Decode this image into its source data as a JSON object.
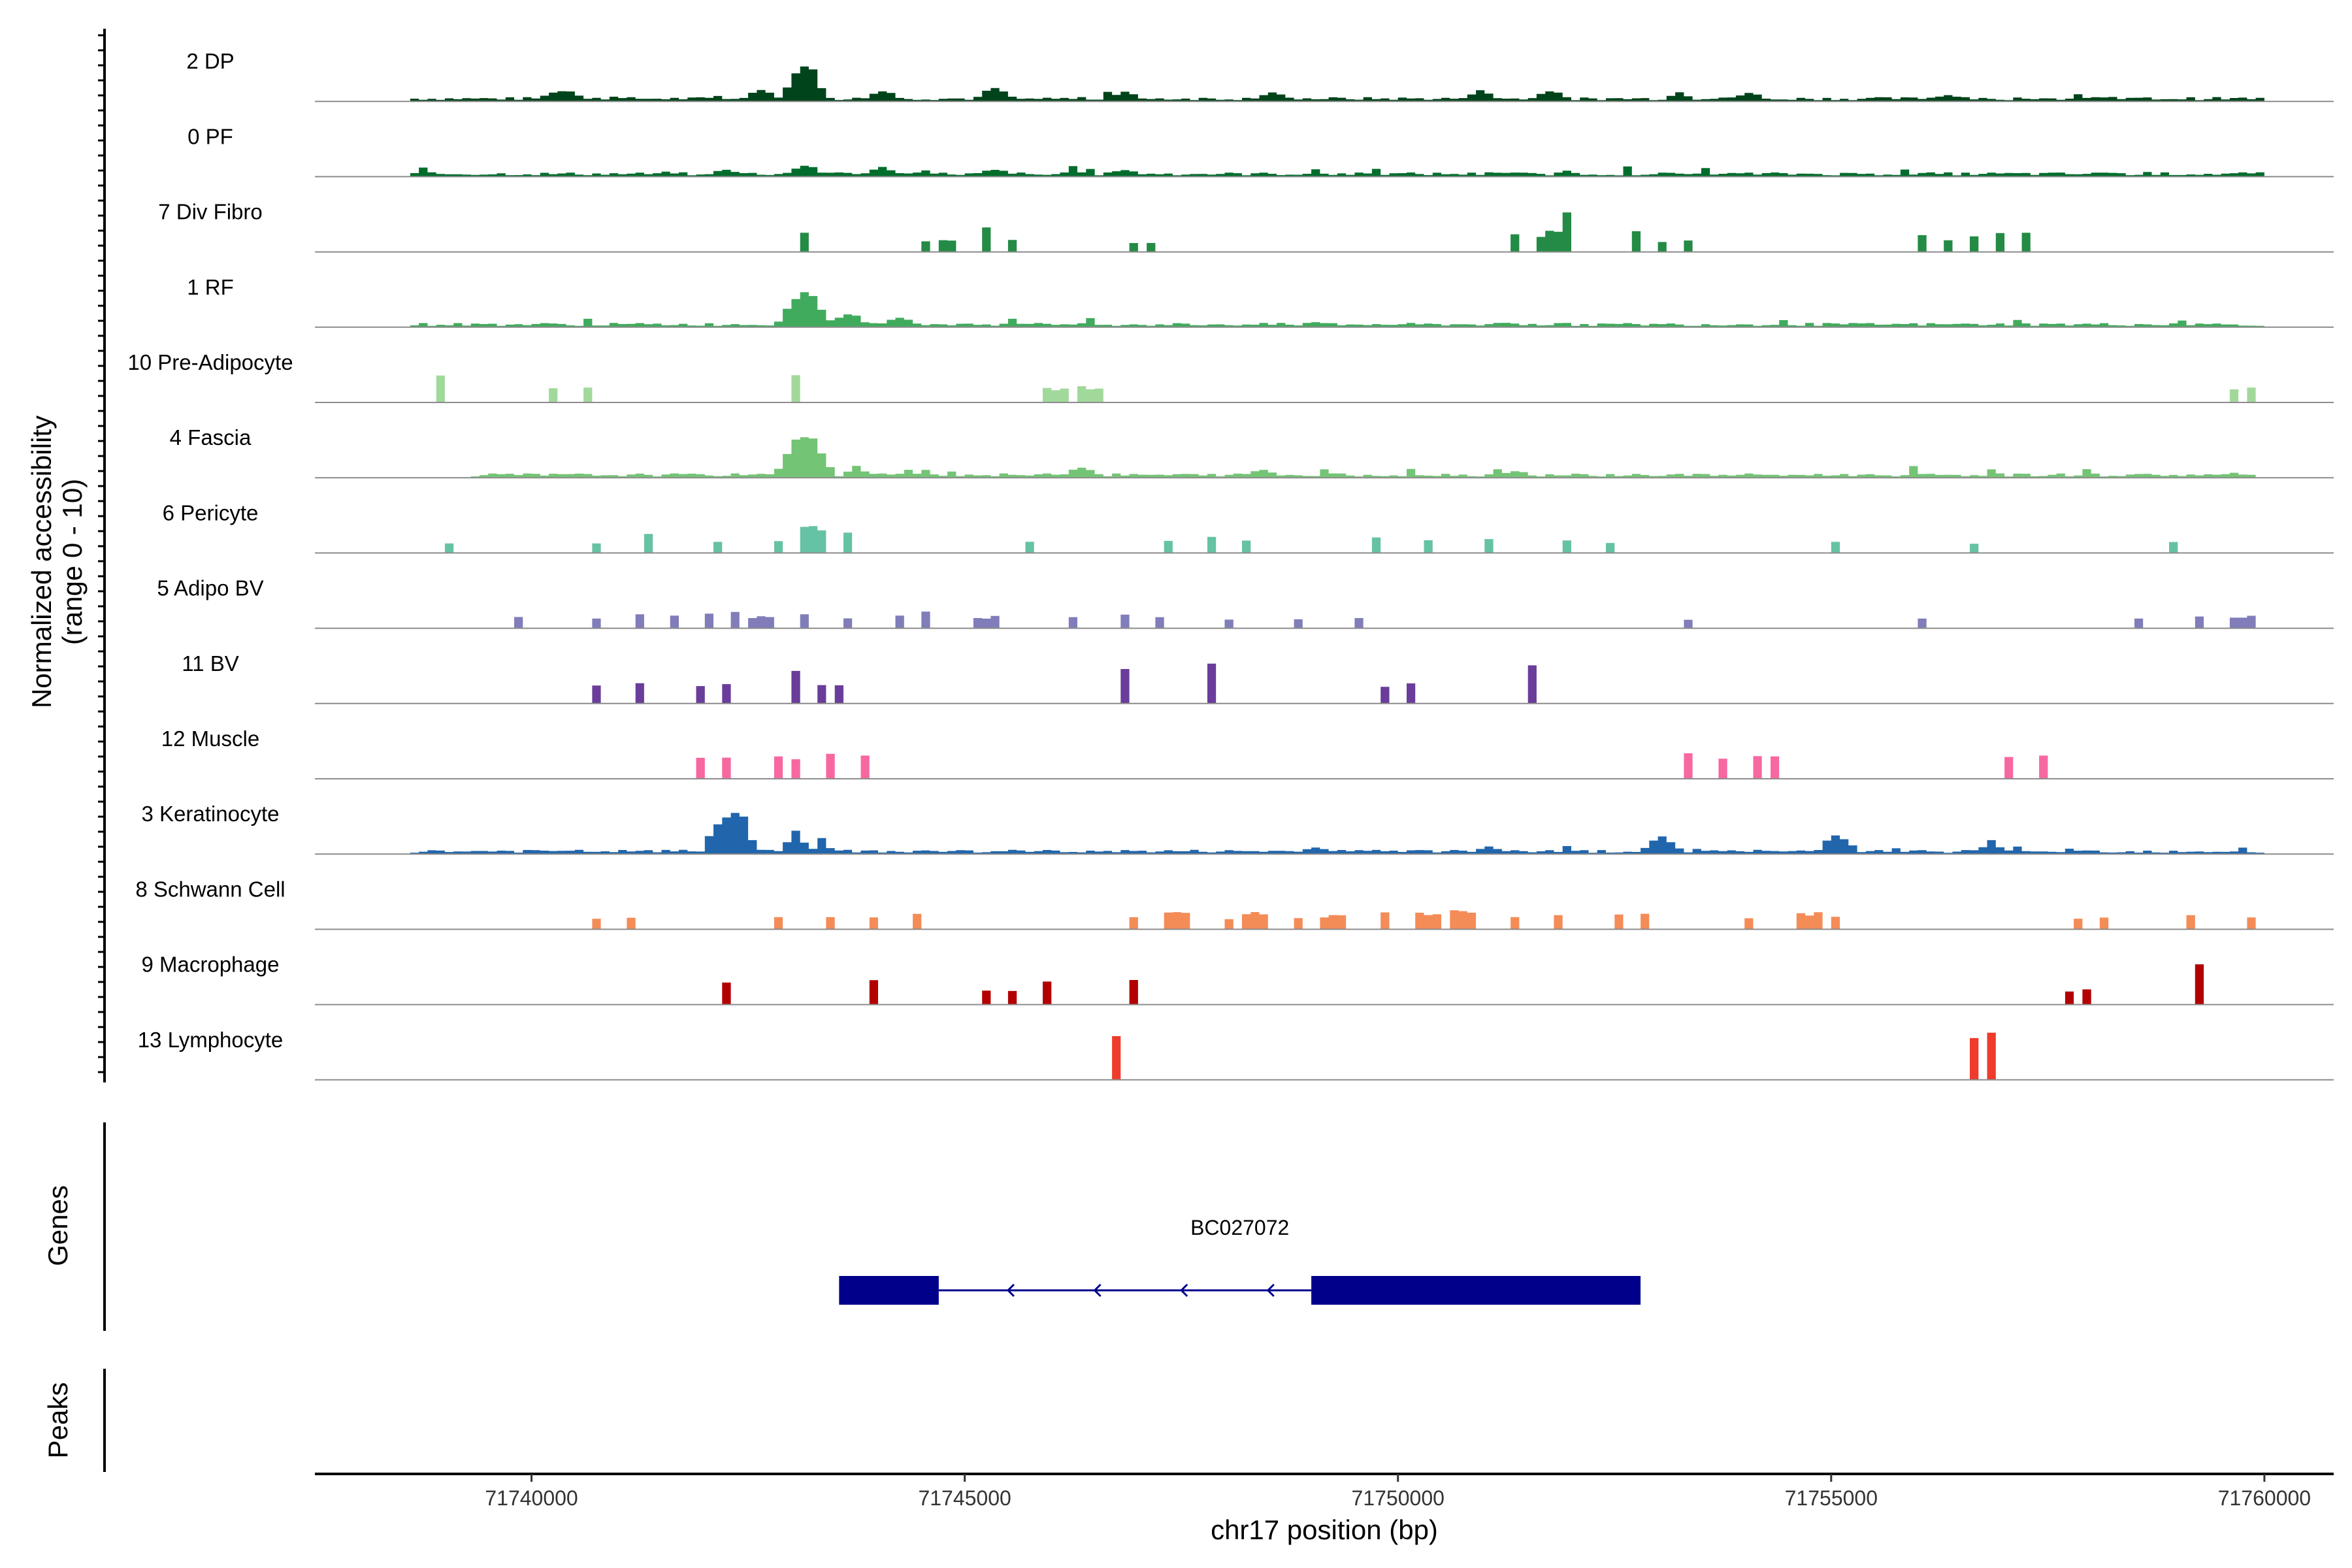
{
  "chart_data": {
    "type": "area",
    "title": "",
    "chromosome": "chr17",
    "xlabel": "chr17 position (bp)",
    "ylabel": "Normalized accessibility",
    "ylabel_range": "(range 0 - 10)",
    "ylim": [
      0,
      10
    ],
    "xlim": [
      71737500,
      71760800
    ],
    "x_ticks": [
      71740000,
      71745000,
      71750000,
      71755000,
      71760000
    ],
    "x_tick_labels": [
      "71740000",
      "71745000",
      "71750000",
      "71755000",
      "71760000"
    ],
    "bin_size_bp": 100,
    "tracks": [
      {
        "name": "2 DP",
        "color": "#00441b",
        "style": "broad",
        "start": 71738600,
        "end": 71759900,
        "peaks": [
          [
            71740300,
            2.3,
            400
          ],
          [
            71743100,
            8.5,
            300
          ],
          [
            71742600,
            2.5,
            300
          ],
          [
            71744000,
            2.2,
            300
          ],
          [
            71745300,
            2.8,
            300
          ],
          [
            71746800,
            2.0,
            300
          ],
          [
            71748500,
            1.8,
            300
          ],
          [
            71750900,
            2.2,
            300
          ],
          [
            71751700,
            2.4,
            300
          ],
          [
            71753200,
            2.2,
            200
          ],
          [
            71754000,
            1.8,
            300
          ],
          [
            71756300,
            1.5,
            300
          ]
        ]
      },
      {
        "name": "0 PF",
        "color": "#006d2c",
        "style": "broad",
        "start": 71738600,
        "end": 71759900,
        "peaks": [
          [
            71743100,
            2.5,
            300
          ],
          [
            71744000,
            2.0,
            300
          ],
          [
            71745300,
            1.6,
            300
          ],
          [
            71742200,
            1.5,
            300
          ],
          [
            71746800,
            1.5,
            300
          ]
        ]
      },
      {
        "name": "7 Div Fibro",
        "color": "#238b45",
        "style": "sparse",
        "peaks": [
          [
            71743100,
            3.8,
            120
          ],
          [
            71744500,
            2.5,
            100
          ],
          [
            71744750,
            2.5,
            100
          ],
          [
            71745200,
            5.2,
            140
          ],
          [
            71745500,
            2.5,
            100
          ],
          [
            71746900,
            2.0,
            100
          ],
          [
            71747100,
            2.0,
            100
          ],
          [
            71751300,
            4.5,
            150
          ],
          [
            71751600,
            3.8,
            150
          ],
          [
            71751750,
            5.2,
            150
          ],
          [
            71751900,
            8.0,
            180
          ],
          [
            71752700,
            5.2,
            120
          ],
          [
            71753000,
            2.5,
            100
          ],
          [
            71753300,
            2.8,
            100
          ],
          [
            71756000,
            3.5,
            150
          ],
          [
            71756300,
            2.5,
            120
          ],
          [
            71756600,
            3.5,
            120
          ],
          [
            71756900,
            4.2,
            150
          ],
          [
            71757200,
            4.8,
            160
          ]
        ]
      },
      {
        "name": "1 RF",
        "color": "#41ab5d",
        "style": "broad",
        "start": 71738600,
        "end": 71759900,
        "peaks": [
          [
            71743100,
            8.0,
            350
          ],
          [
            71743600,
            3.0,
            300
          ],
          [
            71744200,
            2.3,
            300
          ],
          [
            71749000,
            1.2,
            300
          ],
          [
            71751200,
            1.0,
            300
          ]
        ]
      },
      {
        "name": "10 Pre-Adipocyte",
        "color": "#a1d99b",
        "style": "sparse",
        "peaks": [
          [
            71738900,
            6.0,
            120
          ],
          [
            71740200,
            3.0,
            100
          ],
          [
            71740600,
            3.0,
            100
          ],
          [
            71743000,
            6.0,
            150
          ],
          [
            71746000,
            3.2,
            250
          ],
          [
            71746400,
            3.2,
            250
          ],
          [
            71759600,
            3.0,
            100
          ],
          [
            71759800,
            3.0,
            100
          ]
        ]
      },
      {
        "name": "4 Fascia",
        "color": "#74c476",
        "style": "broad",
        "start": 71739300,
        "end": 71759800,
        "peaks": [
          [
            71743100,
            9.5,
            380
          ],
          [
            71743700,
            2.5,
            200
          ],
          [
            71744300,
            1.6,
            200
          ],
          [
            71746300,
            2.2,
            300
          ],
          [
            71748400,
            1.5,
            300
          ],
          [
            71751300,
            1.5,
            300
          ]
        ]
      },
      {
        "name": "6 Pericyte",
        "color": "#66c2a4",
        "style": "sparse",
        "peaks": [
          [
            71739000,
            2.5,
            120
          ],
          [
            71740700,
            2.5,
            100
          ],
          [
            71741300,
            4.0,
            150
          ],
          [
            71742100,
            2.5,
            120
          ],
          [
            71742800,
            3.0,
            150
          ],
          [
            71743200,
            5.5,
            220
          ],
          [
            71743600,
            4.5,
            150
          ],
          [
            71745700,
            2.5,
            100
          ],
          [
            71747300,
            2.5,
            100
          ],
          [
            71747800,
            3.5,
            150
          ],
          [
            71748200,
            2.5,
            150
          ],
          [
            71749700,
            3.8,
            150
          ],
          [
            71750300,
            3.0,
            100
          ],
          [
            71751000,
            3.2,
            120
          ],
          [
            71751900,
            2.5,
            100
          ],
          [
            71752400,
            2.5,
            100
          ],
          [
            71755000,
            2.5,
            150
          ],
          [
            71756600,
            2.2,
            100
          ],
          [
            71758900,
            2.5,
            150
          ]
        ]
      },
      {
        "name": "5 Adipo BV",
        "color": "#807dba",
        "style": "sparse",
        "peaks": [
          [
            71739800,
            2.5,
            100
          ],
          [
            71740700,
            2.0,
            100
          ],
          [
            71741200,
            3.0,
            100
          ],
          [
            71741600,
            2.5,
            100
          ],
          [
            71742000,
            3.0,
            100
          ],
          [
            71742300,
            4.0,
            150
          ],
          [
            71742600,
            2.5,
            200
          ],
          [
            71743100,
            3.0,
            150
          ],
          [
            71743600,
            2.5,
            100
          ],
          [
            71744200,
            2.5,
            100
          ],
          [
            71744500,
            3.5,
            150
          ],
          [
            71745200,
            2.5,
            200
          ],
          [
            71746200,
            2.5,
            100
          ],
          [
            71746800,
            3.5,
            150
          ],
          [
            71747200,
            2.5,
            100
          ],
          [
            71748000,
            2.0,
            100
          ],
          [
            71748800,
            2.0,
            100
          ],
          [
            71749500,
            2.0,
            100
          ],
          [
            71753300,
            2.0,
            100
          ],
          [
            71756000,
            2.0,
            100
          ],
          [
            71758500,
            2.0,
            100
          ],
          [
            71759200,
            2.5,
            150
          ],
          [
            71759700,
            2.5,
            200
          ]
        ]
      },
      {
        "name": "11 BV",
        "color": "#6a3d9a",
        "style": "sparse",
        "peaks": [
          [
            71740700,
            4.0,
            100
          ],
          [
            71741200,
            4.0,
            100
          ],
          [
            71741900,
            4.0,
            100
          ],
          [
            71742200,
            4.0,
            100
          ],
          [
            71743000,
            8.0,
            150
          ],
          [
            71743300,
            4.0,
            100
          ],
          [
            71743500,
            4.0,
            100
          ],
          [
            71746800,
            8.0,
            120
          ],
          [
            71747800,
            8.0,
            150
          ],
          [
            71749800,
            4.0,
            100
          ],
          [
            71750100,
            4.0,
            100
          ],
          [
            71751500,
            8.0,
            150
          ]
        ]
      },
      {
        "name": "12 Muscle",
        "color": "#f768a1",
        "style": "sparse",
        "peaks": [
          [
            71741900,
            5.0,
            100
          ],
          [
            71742200,
            5.0,
            100
          ],
          [
            71742800,
            5.0,
            100
          ],
          [
            71743000,
            5.0,
            100
          ],
          [
            71743400,
            5.0,
            100
          ],
          [
            71743800,
            5.0,
            100
          ],
          [
            71753300,
            5.0,
            100
          ],
          [
            71753700,
            5.0,
            100
          ],
          [
            71754100,
            5.0,
            100
          ],
          [
            71754300,
            5.0,
            100
          ],
          [
            71757000,
            5.0,
            100
          ],
          [
            71757400,
            5.0,
            100
          ]
        ]
      },
      {
        "name": "3 Keratinocyte",
        "color": "#2166ac",
        "style": "broad",
        "start": 71738600,
        "end": 71759900,
        "peaks": [
          [
            71742300,
            10.0,
            300
          ],
          [
            71742100,
            6.5,
            200
          ],
          [
            71743000,
            5.0,
            200
          ],
          [
            71743300,
            3.5,
            150
          ],
          [
            71753000,
            3.5,
            300
          ],
          [
            71755000,
            4.5,
            250
          ],
          [
            71756800,
            2.8,
            200
          ],
          [
            71749000,
            1.5,
            300
          ],
          [
            71751000,
            1.5,
            300
          ]
        ]
      },
      {
        "name": "8 Schwann Cell",
        "color": "#f48c58",
        "style": "sparse",
        "peaks": [
          [
            71740700,
            2.5,
            100
          ],
          [
            71741100,
            2.5,
            100
          ],
          [
            71742800,
            2.5,
            150
          ],
          [
            71743400,
            2.5,
            100
          ],
          [
            71743900,
            2.5,
            100
          ],
          [
            71744400,
            3.5,
            150
          ],
          [
            71746900,
            3.0,
            150
          ],
          [
            71747400,
            3.5,
            200
          ],
          [
            71748000,
            2.5,
            150
          ],
          [
            71748300,
            3.5,
            200
          ],
          [
            71748800,
            2.5,
            150
          ],
          [
            71749200,
            3.0,
            200
          ],
          [
            71749800,
            3.5,
            150
          ],
          [
            71750300,
            3.5,
            200
          ],
          [
            71750700,
            4.0,
            250
          ],
          [
            71751300,
            3.0,
            150
          ],
          [
            71751800,
            3.5,
            150
          ],
          [
            71752500,
            3.0,
            150
          ],
          [
            71752800,
            3.5,
            150
          ],
          [
            71754000,
            2.5,
            100
          ],
          [
            71754700,
            3.5,
            200
          ],
          [
            71755000,
            2.5,
            100
          ],
          [
            71757800,
            2.5,
            100
          ],
          [
            71758100,
            2.5,
            100
          ],
          [
            71759100,
            3.5,
            150
          ],
          [
            71759800,
            2.5,
            100
          ]
        ]
      },
      {
        "name": "9 Macrophage",
        "color": "#b30000",
        "style": "sparse",
        "peaks": [
          [
            71742200,
            5.0,
            150
          ],
          [
            71743900,
            5.0,
            150
          ],
          [
            71745200,
            3.0,
            100
          ],
          [
            71745500,
            3.0,
            100
          ],
          [
            71745900,
            5.5,
            150
          ],
          [
            71746900,
            5.5,
            150
          ],
          [
            71757700,
            3.0,
            100
          ],
          [
            71757900,
            3.0,
            100
          ],
          [
            71759200,
            8.5,
            150
          ]
        ]
      },
      {
        "name": "13 Lymphocyte",
        "color": "#ef3b2c",
        "style": "sparse",
        "peaks": [
          [
            71746700,
            10.0,
            150
          ],
          [
            71756600,
            10.0,
            120
          ],
          [
            71756800,
            10.0,
            120
          ]
        ]
      }
    ],
    "gene": {
      "name": "BC027072",
      "strand": "-",
      "color": "#00008b",
      "exons": [
        [
          71743550,
          71744700
        ],
        [
          71749000,
          71752800
        ]
      ],
      "intron": [
        71744700,
        71749000
      ],
      "arrow_positions": [
        71745500,
        71746500,
        71747500,
        71748500
      ]
    },
    "panel_labels": {
      "genes": "Genes",
      "peaks": "Peaks"
    }
  }
}
